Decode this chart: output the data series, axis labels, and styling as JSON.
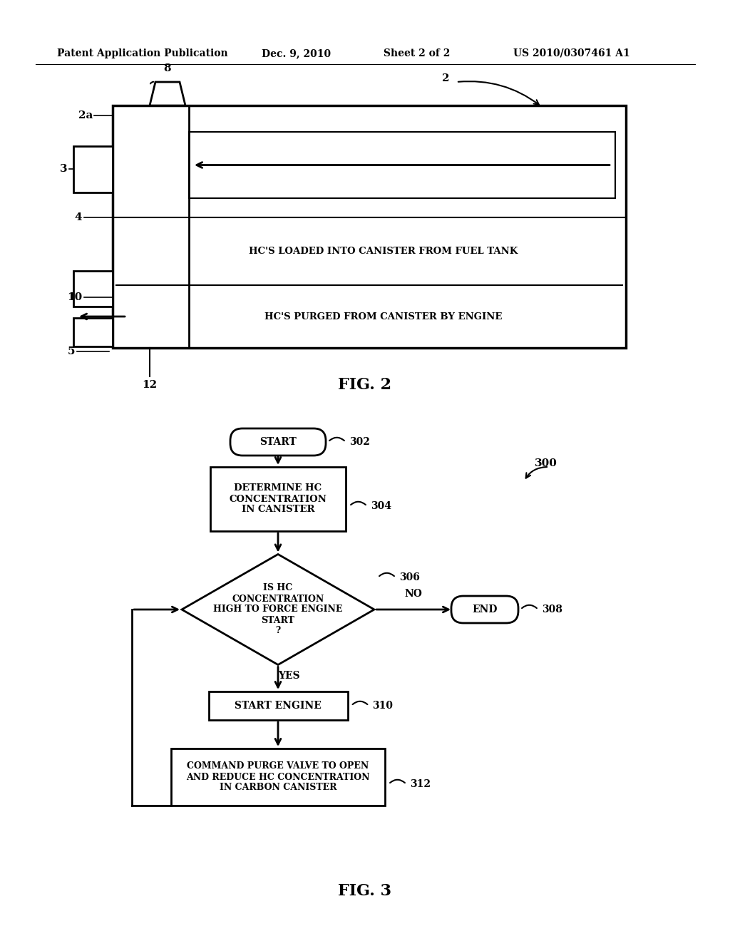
{
  "bg_color": "#ffffff",
  "header_text": "Patent Application Publication",
  "header_date": "Dec. 9, 2010",
  "header_sheet": "Sheet 2 of 2",
  "header_patent": "US 2010/0307461 A1",
  "fig2_label": "FIG. 2",
  "fig3_label": "FIG. 3",
  "text_hc_loaded": "HC'S LOADED INTO CANISTER FROM FUEL TANK",
  "text_hc_purged": "HC'S PURGED FROM CANISTER BY ENGINE",
  "line_color": "#000000",
  "line_width": 2.0
}
